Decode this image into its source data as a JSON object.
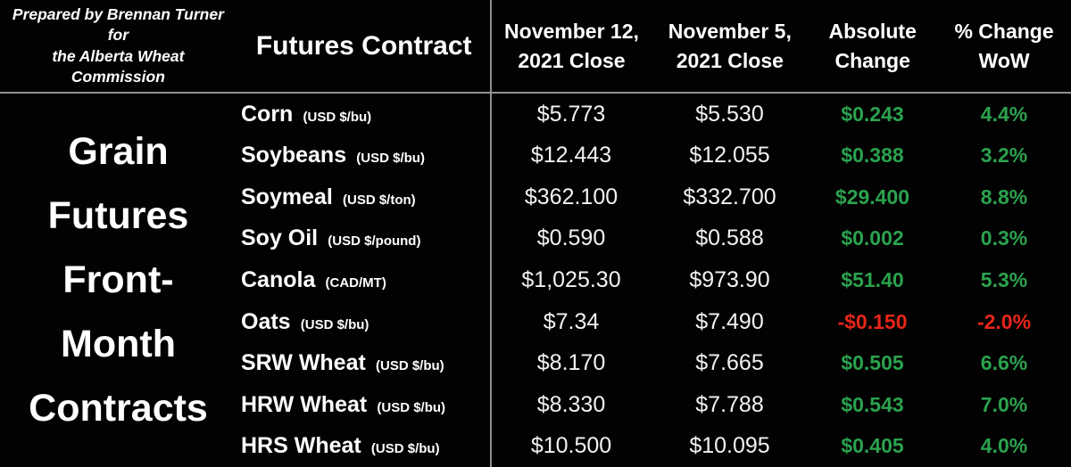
{
  "colors": {
    "positive": "#2ba24e",
    "negative": "#e8251a",
    "grid": "#909090",
    "text": "#f2f2f2",
    "background": "#020202"
  },
  "header": {
    "note_lines": [
      "Prepared by Brennan Turner for",
      "the Alberta Wheat Commission"
    ],
    "contract_col": "Futures Contract",
    "nov12_lines": [
      "November 12,",
      "2021 Close"
    ],
    "nov5_lines": [
      "November 5,",
      "2021 Close"
    ],
    "abs_lines": [
      "Absolute",
      "Change"
    ],
    "pct_lines": [
      "% Change",
      "WoW"
    ]
  },
  "chart_data": {
    "type": "table",
    "title": "Grain Futures Front-Month Contracts",
    "title_lines": [
      "Grain",
      "Futures",
      "Front-",
      "Month",
      "Contracts"
    ],
    "note": "Prepared by Brennan Turner for the Alberta Wheat Commission",
    "columns": [
      "Futures Contract",
      "November 12, 2021 Close",
      "November 5, 2021 Close",
      "Absolute Change",
      "% Change WoW"
    ],
    "rows": [
      {
        "contract": "Corn",
        "unit": "(USD $/bu)",
        "nov12_close": "$5.773",
        "nov5_close": "$5.530",
        "absolute_change": "$0.243",
        "pct_change_wow": "4.4%",
        "direction": "up"
      },
      {
        "contract": "Soybeans",
        "unit": "(USD $/bu)",
        "nov12_close": "$12.443",
        "nov5_close": "$12.055",
        "absolute_change": "$0.388",
        "pct_change_wow": "3.2%",
        "direction": "up"
      },
      {
        "contract": "Soymeal",
        "unit": "(USD $/ton)",
        "nov12_close": "$362.100",
        "nov5_close": "$332.700",
        "absolute_change": "$29.400",
        "pct_change_wow": "8.8%",
        "direction": "up"
      },
      {
        "contract": "Soy Oil",
        "unit": "(USD $/pound)",
        "nov12_close": "$0.590",
        "nov5_close": "$0.588",
        "absolute_change": "$0.002",
        "pct_change_wow": "0.3%",
        "direction": "up"
      },
      {
        "contract": "Canola",
        "unit": "(CAD/MT)",
        "nov12_close": "$1,025.30",
        "nov5_close": "$973.90",
        "absolute_change": "$51.40",
        "pct_change_wow": "5.3%",
        "direction": "up"
      },
      {
        "contract": "Oats",
        "unit": "(USD $/bu)",
        "nov12_close": "$7.34",
        "nov5_close": "$7.490",
        "absolute_change": "-$0.150",
        "pct_change_wow": "-2.0%",
        "direction": "down"
      },
      {
        "contract": "SRW Wheat",
        "unit": "(USD $/bu)",
        "nov12_close": "$8.170",
        "nov5_close": "$7.665",
        "absolute_change": "$0.505",
        "pct_change_wow": "6.6%",
        "direction": "up"
      },
      {
        "contract": "HRW Wheat",
        "unit": "(USD $/bu)",
        "nov12_close": "$8.330",
        "nov5_close": "$7.788",
        "absolute_change": "$0.543",
        "pct_change_wow": "7.0%",
        "direction": "up"
      },
      {
        "contract": "HRS Wheat",
        "unit": "(USD $/bu)",
        "nov12_close": "$10.500",
        "nov5_close": "$10.095",
        "absolute_change": "$0.405",
        "pct_change_wow": "4.0%",
        "direction": "up"
      }
    ]
  }
}
